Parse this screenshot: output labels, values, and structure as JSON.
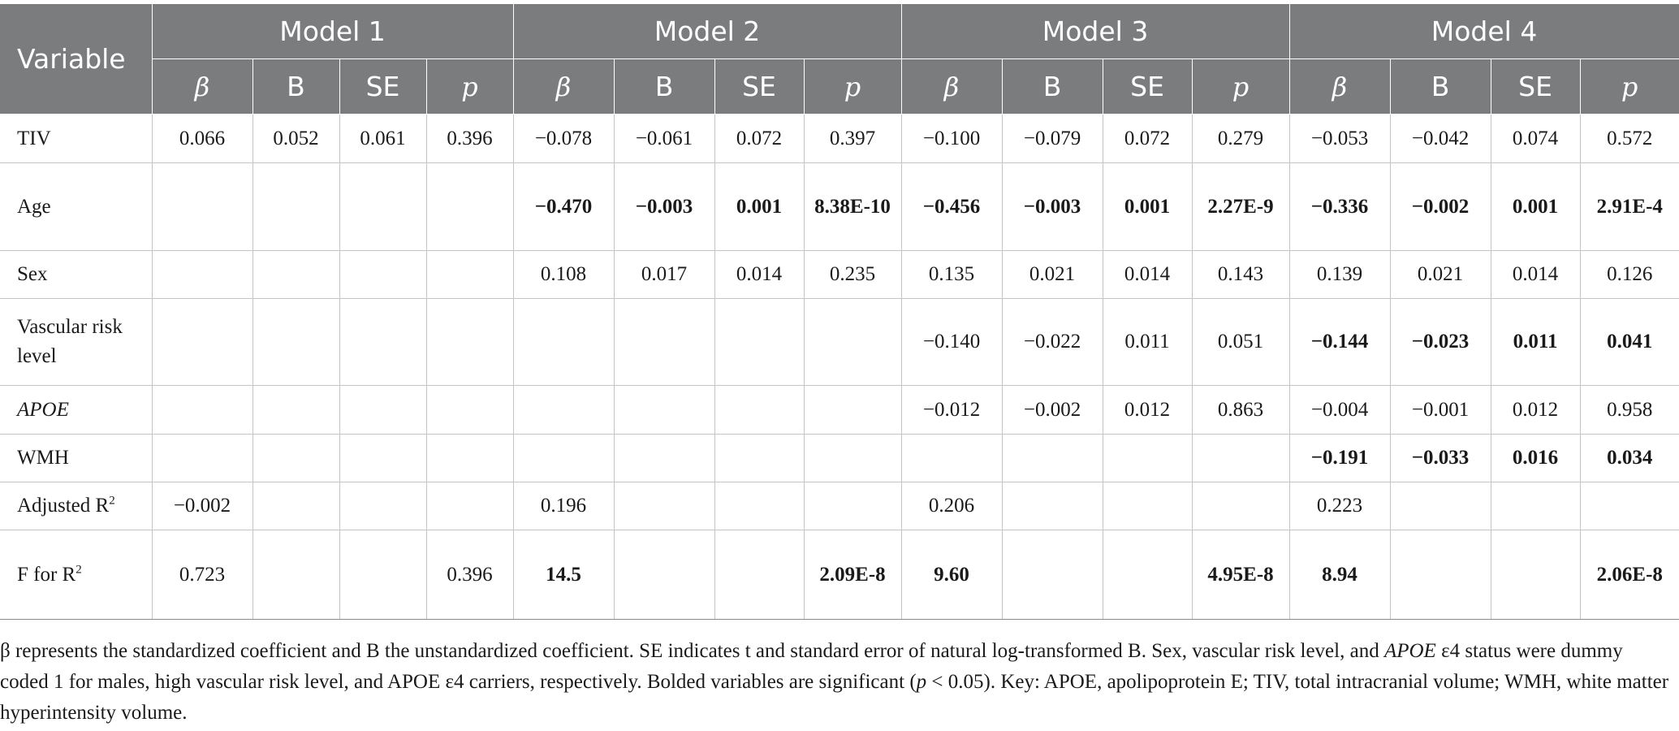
{
  "table": {
    "variable_header": "Variable",
    "models": [
      "Model 1",
      "Model 2",
      "Model 3",
      "Model 4"
    ],
    "subheaders": [
      "β",
      "B",
      "SE",
      "p"
    ],
    "rows": [
      {
        "label": "TIV",
        "cells": [
          "0.066",
          "0.052",
          "0.061",
          "0.396",
          "−0.078",
          "−0.061",
          "0.072",
          "0.397",
          "−0.100",
          "−0.079",
          "0.072",
          "0.279",
          "−0.053",
          "−0.042",
          "0.074",
          "0.572"
        ]
      },
      {
        "label": "Age",
        "cells": [
          "",
          "",
          "",
          "",
          "−0.470",
          "−0.003",
          "0.001",
          "8.38E-10",
          "−0.456",
          "−0.003",
          "0.001",
          "2.27E-9",
          "−0.336",
          "−0.002",
          "0.001",
          "2.91E-4"
        ]
      },
      {
        "label": "Sex",
        "cells": [
          "",
          "",
          "",
          "",
          "0.108",
          "0.017",
          "0.014",
          "0.235",
          "0.135",
          "0.021",
          "0.014",
          "0.143",
          "0.139",
          "0.021",
          "0.014",
          "0.126"
        ]
      },
      {
        "label": "Vascular risk level",
        "cells": [
          "",
          "",
          "",
          "",
          "",
          "",
          "",
          "",
          "−0.140",
          "−0.022",
          "0.011",
          "0.051",
          "−0.144",
          "−0.023",
          "0.011",
          "0.041"
        ]
      },
      {
        "label": "APOE",
        "cells": [
          "",
          "",
          "",
          "",
          "",
          "",
          "",
          "",
          "−0.012",
          "−0.002",
          "0.012",
          "0.863",
          "−0.004",
          "−0.001",
          "0.012",
          "0.958"
        ]
      },
      {
        "label": "WMH",
        "cells": [
          "",
          "",
          "",
          "",
          "",
          "",
          "",
          "",
          "",
          "",
          "",
          "",
          "−0.191",
          "−0.033",
          "0.016",
          "0.034"
        ]
      },
      {
        "label": "Adjusted R",
        "sup": "2",
        "cells": [
          "−0.002",
          "",
          "",
          "",
          "0.196",
          "",
          "",
          "",
          "0.206",
          "",
          "",
          "",
          "0.223",
          "",
          "",
          ""
        ]
      },
      {
        "label": "F for R",
        "sup": "2",
        "cells": [
          "0.723",
          "",
          "",
          "0.396",
          "14.5",
          "",
          "",
          "2.09E-8",
          "9.60",
          "",
          "",
          "4.95E-8",
          "8.94",
          "",
          "",
          "2.06E-8"
        ]
      }
    ]
  },
  "footnote": {
    "part1": "β represents the standardized coefficient and B the unstandardized coefficient. SE indicates t and standard error of natural log-transformed B. Sex, vascular risk level, and ",
    "apoe_italic": "APOE",
    "part2": " ε4 status were dummy coded 1 for males, high vascular risk level, and APOE ε4 carriers, respectively. Bolded variables are significant (",
    "p_italic": "p",
    "part3": " < 0.05). Key: APOE, apolipoprotein E; TIV, total intracranial volume; WMH, white matter hyperintensity volume."
  }
}
